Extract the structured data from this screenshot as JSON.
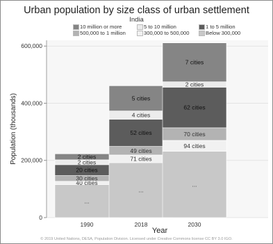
{
  "chart_data": {
    "type": "bar",
    "stacked": true,
    "title": "Urban population by size class of urban settlement",
    "subtitle": "India",
    "xlabel": "Year",
    "ylabel": "Population (thousands)",
    "ylim": [
      0,
      620000
    ],
    "yticks": [
      0,
      200000,
      400000,
      600000
    ],
    "ytick_labels": [
      "0",
      "200,000",
      "400,000",
      "600,000"
    ],
    "categories": [
      "1990",
      "2018",
      "2030"
    ],
    "grid": true,
    "legend_position": "top",
    "series": [
      {
        "name": "Below 300,000",
        "color": "#c8c8c8",
        "values": [
          115000,
          192000,
          232000
        ],
        "labels": [
          "...",
          "...",
          "..."
        ]
      },
      {
        "name": "300,000 to 500,000",
        "color": "#f1f1f1",
        "values": [
          12000,
          27000,
          38000
        ],
        "labels": [
          "40 cities",
          "71 cities",
          "94 cities"
        ]
      },
      {
        "name": "500,000 to 1 million",
        "color": "#b3b3b3",
        "values": [
          20000,
          30000,
          44000
        ],
        "labels": [
          "30 cities",
          "49 cities",
          "70 cities"
        ]
      },
      {
        "name": "1 to 5 million",
        "color": "#5c5c5c",
        "values": [
          38000,
          95000,
          142000
        ],
        "labels": [
          "20 cities",
          "52 cities",
          "62 cities"
        ]
      },
      {
        "name": "5 to 10 million",
        "color": "#ececec",
        "values": [
          17000,
          29000,
          19000
        ],
        "labels": [
          "2 cities",
          "4 cities",
          "2 cities"
        ]
      },
      {
        "name": "10 million or more",
        "color": "#858585",
        "values": [
          21000,
          88000,
          136000
        ],
        "labels": [
          "2 cities",
          "5 cities",
          "7 cities"
        ]
      }
    ]
  },
  "credit": "© 2019 United Nations, DESA, Population Division. Licensed under Creative Commons license CC BY 3.0 IGO."
}
